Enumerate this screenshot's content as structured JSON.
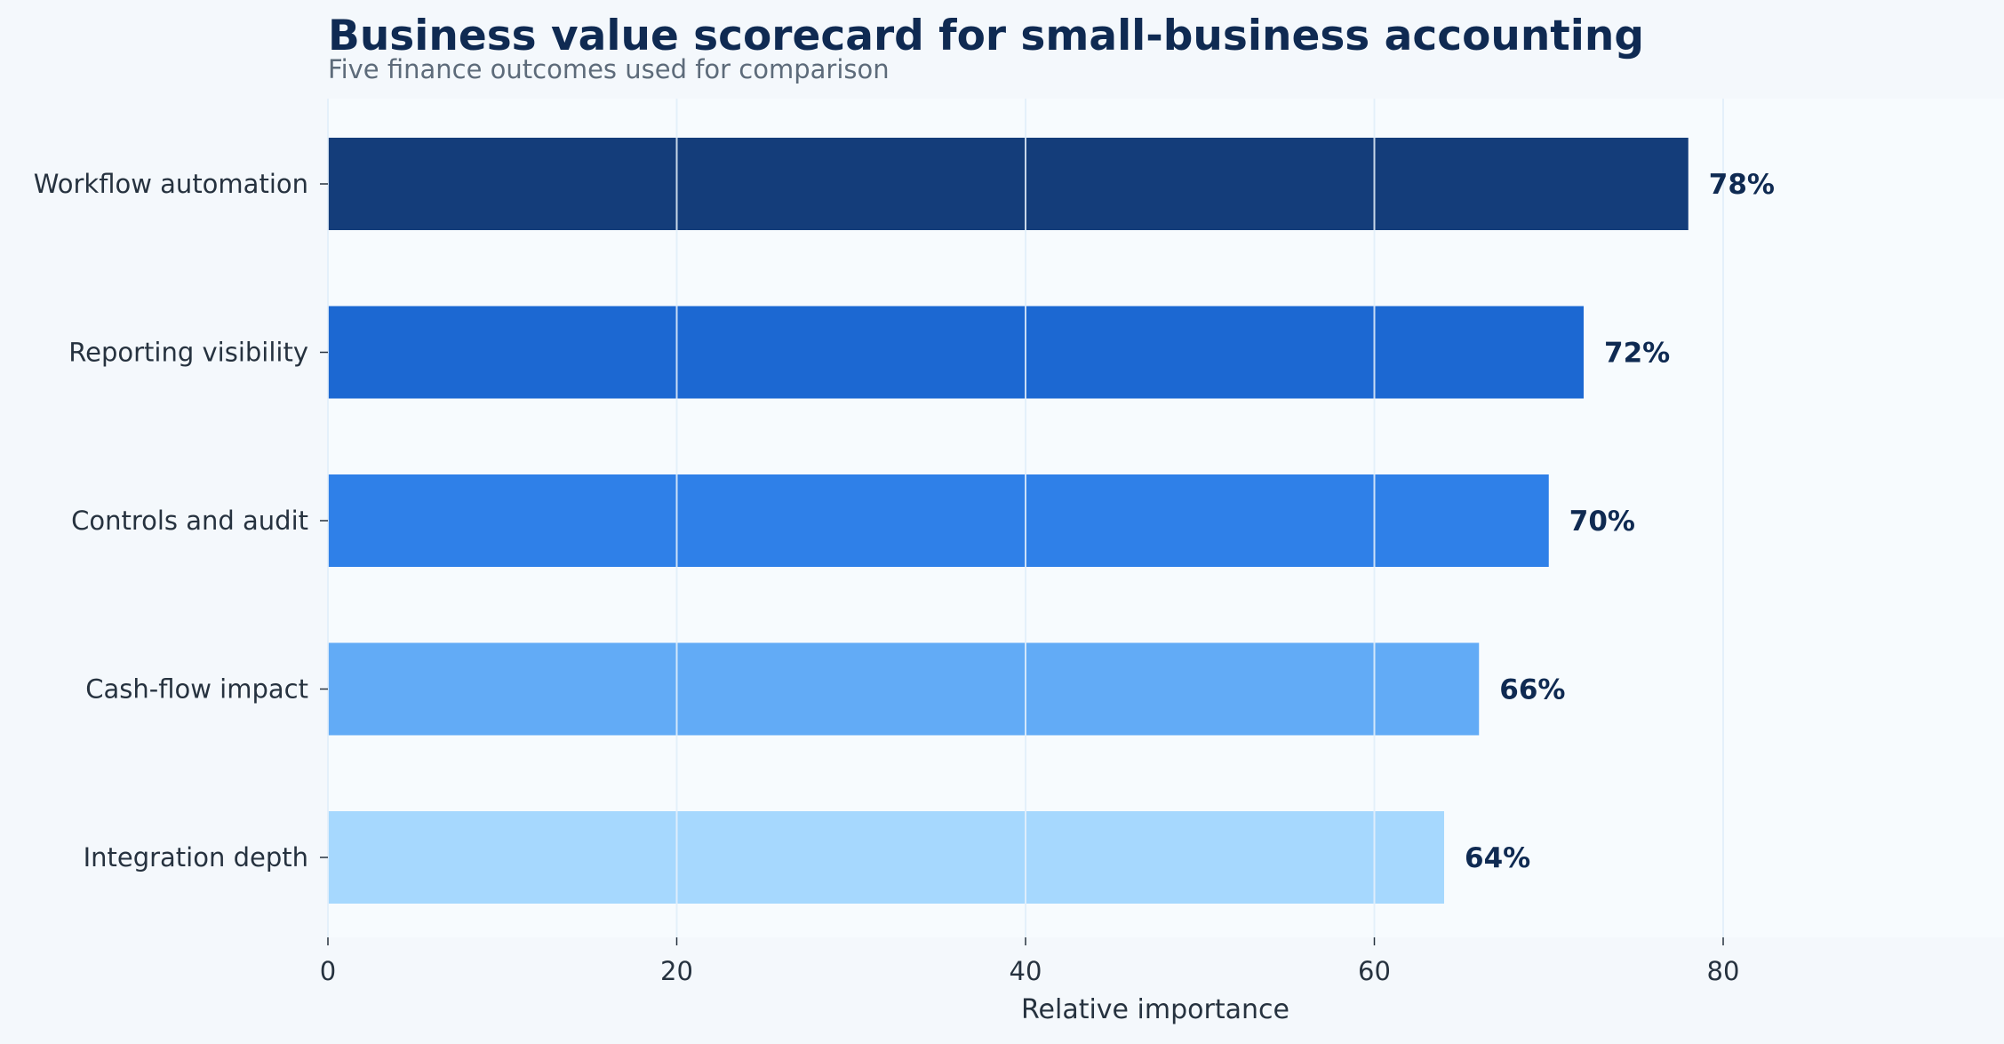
{
  "chart_data": {
    "type": "bar",
    "orientation": "horizontal",
    "title": "Business value scorecard for small-business accounting",
    "subtitle": "Five finance outcomes used for comparison",
    "xlabel": "Relative importance",
    "ylabel": "",
    "xlim": [
      0,
      95
    ],
    "xticks": [
      0,
      20,
      40,
      60,
      80
    ],
    "categories": [
      "Workflow automation",
      "Reporting visibility",
      "Controls and audit",
      "Cash-flow impact",
      "Integration depth"
    ],
    "values": [
      78,
      72,
      70,
      66,
      64
    ],
    "value_labels": [
      "78%",
      "72%",
      "70%",
      "66%",
      "64%"
    ],
    "bar_colors": [
      "#143d7a",
      "#1c68d2",
      "#2f80e8",
      "#62abf6",
      "#a6d8fe"
    ],
    "grid": true,
    "grid_axis": "x",
    "legend": "none"
  }
}
